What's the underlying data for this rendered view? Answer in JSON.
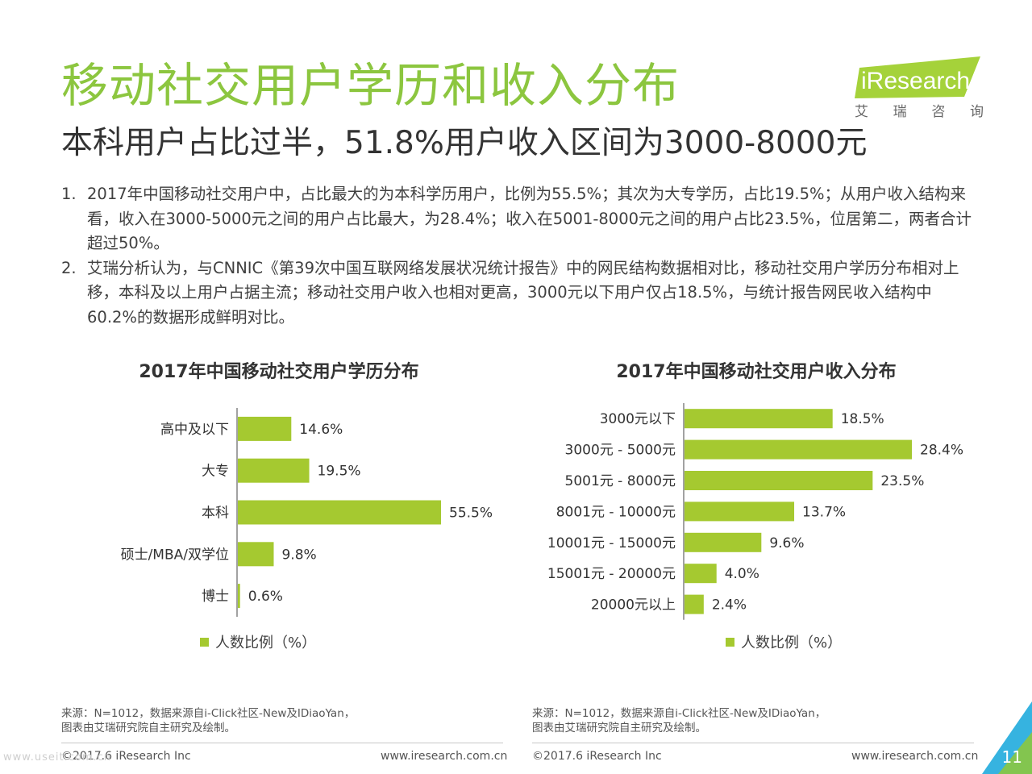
{
  "header": {
    "title": "移动社交用户学历和收入分布",
    "subtitle": "本科用户占比过半，51.8%用户收入区间为3000-8000元",
    "logo_text": "iResearch",
    "logo_cn": [
      "艾",
      "瑞",
      "咨",
      "询"
    ]
  },
  "notes": [
    {
      "num": "1.",
      "text": "2017年中国移动社交用户中，占比最大的为本科学历用户，比例为55.5%；其次为大专学历，占比19.5%；从用户收入结构来看，收入在3000-5000元之间的用户占比最大，为28.4%；收入在5001-8000元之间的用户占比23.5%，位居第二，两者合计超过50%。"
    },
    {
      "num": "2.",
      "text": "艾瑞分析认为，与CNNIC《第39次中国互联网络发展状况统计报告》中的网民结构数据相对比，移动社交用户学历分布相对上移，本科及以上用户占据主流；移动社交用户收入也相对更高，3000元以下用户仅占18.5%，与统计报告网民收入结构中60.2%的数据形成鲜明对比。"
    }
  ],
  "chart_data": [
    {
      "type": "bar",
      "orientation": "horizontal",
      "title": "2017年中国移动社交用户学历分布",
      "categories": [
        "高中及以下",
        "大专",
        "本科",
        "硕士/MBA/双学位",
        "博士"
      ],
      "values": [
        14.6,
        19.5,
        55.5,
        9.8,
        0.6
      ],
      "value_labels": [
        "14.6%",
        "19.5%",
        "55.5%",
        "9.8%",
        "0.6%"
      ],
      "series": [
        {
          "name": "人数比例（%）",
          "values": [
            14.6,
            19.5,
            55.5,
            9.8,
            0.6
          ]
        }
      ],
      "legend": "bottom",
      "grid": false,
      "color": "#a5c930"
    },
    {
      "type": "bar",
      "orientation": "horizontal",
      "title": "2017年中国移动社交用户收入分布",
      "categories": [
        "3000元以下",
        "3000元 - 5000元",
        "5001元 - 8000元",
        "8001元 - 10000元",
        "10001元 - 15000元",
        "15001元 - 20000元",
        "20000元以上"
      ],
      "values": [
        18.5,
        28.4,
        23.5,
        13.7,
        9.6,
        4.0,
        2.4
      ],
      "value_labels": [
        "18.5%",
        "28.4%",
        "23.5%",
        "13.7%",
        "9.6%",
        "4.0%",
        "2.4%"
      ],
      "series": [
        {
          "name": "人数比例（%）",
          "values": [
            18.5,
            28.4,
            23.5,
            13.7,
            9.6,
            4.0,
            2.4
          ]
        }
      ],
      "legend": "bottom",
      "grid": false,
      "color": "#a5c930"
    }
  ],
  "legend_label": "人数比例（%）",
  "sources": [
    [
      "来源：N=1012，数据来源自i-Click社区-New及IDiaoYan，",
      "图表由艾瑞研究院自主研究及绘制。"
    ],
    [
      "来源：N=1012，数据来源自i-Click社区-New及IDiaoYan，",
      "图表由艾瑞研究院自主研究及绘制。"
    ]
  ],
  "footer": {
    "copyright": "©2017.6 iResearch Inc",
    "website": "www.iresearch.com.cn",
    "page_number": "11",
    "watermark": "www.useit.com.cn"
  },
  "colors": {
    "title": "#8cc63f",
    "bar": "#a5c930",
    "logo": "#a5d23a",
    "page_triangle": "#36b3e0"
  }
}
